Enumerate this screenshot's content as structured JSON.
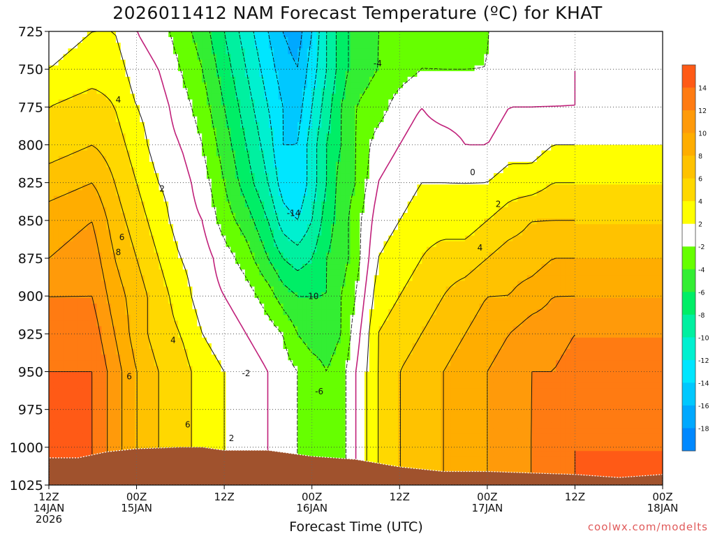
{
  "chart_data": {
    "type": "contour",
    "title": "2026011412 NAM Forecast Temperature (ºC) for KHAT",
    "xlabel": "Forecast Time (UTC)",
    "ylabel": "",
    "y_scale": "pressure, decreasing upward",
    "ylim": [
      1025,
      725
    ],
    "y_ticks": [
      "725",
      "750",
      "775",
      "800",
      "825",
      "850",
      "875",
      "900",
      "925",
      "950",
      "975",
      "1000",
      "1025"
    ],
    "x_ticks": [
      {
        "lines": [
          "12Z",
          "14JAN",
          "2026"
        ]
      },
      {
        "lines": [
          "00Z",
          "15JAN"
        ]
      },
      {
        "lines": [
          "12Z"
        ]
      },
      {
        "lines": [
          "00Z",
          "16JAN"
        ]
      },
      {
        "lines": [
          "12Z"
        ]
      },
      {
        "lines": [
          "00Z",
          "17JAN"
        ]
      },
      {
        "lines": [
          "12Z"
        ]
      },
      {
        "lines": [
          "00Z",
          "18JAN"
        ]
      }
    ],
    "grid": true,
    "colorbar": {
      "placement": "right",
      "bins": [
        {
          "label": "",
          "color": "#ff5a16"
        },
        {
          "label": "14",
          "color": "#ff7b12"
        },
        {
          "label": "12",
          "color": "#ff9a0a"
        },
        {
          "label": "10",
          "color": "#ffad00"
        },
        {
          "label": "8",
          "color": "#ffc200"
        },
        {
          "label": "6",
          "color": "#ffd800"
        },
        {
          "label": "4",
          "color": "#ffff00"
        },
        {
          "label": "2",
          "color": "#ffffff"
        },
        {
          "label": "-2",
          "color": "#66ff00"
        },
        {
          "label": "-4",
          "color": "#33ee33"
        },
        {
          "label": "-6",
          "color": "#00ee66"
        },
        {
          "label": "-8",
          "color": "#00f0a0"
        },
        {
          "label": "-10",
          "color": "#00f0d0"
        },
        {
          "label": "-12",
          "color": "#00e6ff"
        },
        {
          "label": "-14",
          "color": "#00c8ff"
        },
        {
          "label": "-16",
          "color": "#00a8ff"
        },
        {
          "label": "-18",
          "color": "#0088ff"
        }
      ]
    },
    "contour_labels": [
      {
        "text": "4",
        "t": 9.5,
        "p": 772
      },
      {
        "text": "2",
        "t": 15.5,
        "p": 831
      },
      {
        "text": "6",
        "t": 10,
        "p": 863
      },
      {
        "text": "8",
        "t": 9.5,
        "p": 873
      },
      {
        "text": "4",
        "t": 17,
        "p": 931
      },
      {
        "text": "6",
        "t": 11,
        "p": 955
      },
      {
        "text": "6",
        "t": 19,
        "p": 987
      },
      {
        "text": "2",
        "t": 25,
        "p": 996
      },
      {
        "text": "-2",
        "t": 27,
        "p": 953
      },
      {
        "text": "-14",
        "t": 33.5,
        "p": 847
      },
      {
        "text": "-10",
        "t": 36,
        "p": 902
      },
      {
        "text": "-6",
        "t": 37,
        "p": 965
      },
      {
        "text": "-4",
        "t": 45,
        "p": 748
      },
      {
        "text": "0",
        "t": 58,
        "p": 820
      },
      {
        "text": "2",
        "t": 61.5,
        "p": 841
      },
      {
        "text": "4",
        "t": 59,
        "p": 870
      }
    ],
    "temperature_field": {
      "comment": "nodes: forecast hour from 12Z 14JAN",
      "hours": [
        0,
        6,
        9,
        12,
        15,
        18,
        21,
        24,
        27,
        30,
        32,
        34,
        36,
        38,
        40,
        42,
        45,
        48,
        51,
        54,
        57,
        60,
        63,
        66,
        69,
        72
      ],
      "columns": [
        [
          1,
          2,
          4,
          5,
          7,
          9,
          10,
          12,
          13,
          14,
          15
        ],
        [
          2,
          3,
          5,
          6,
          8,
          10,
          11,
          12,
          13,
          14,
          14
        ],
        [
          2,
          3,
          4,
          5,
          6,
          7,
          8,
          9,
          10,
          11,
          11
        ],
        [
          0,
          1,
          2,
          3,
          4,
          5,
          6,
          7,
          7,
          8,
          8
        ],
        [
          -1,
          0,
          1,
          1,
          2,
          3,
          4,
          5,
          5,
          6,
          6
        ],
        [
          -3,
          -2,
          -1,
          0,
          1,
          1,
          2,
          3,
          4,
          5,
          5
        ],
        [
          -5,
          -4,
          -3,
          -2,
          -1,
          0,
          1,
          1,
          2,
          3,
          3
        ],
        [
          -8,
          -7,
          -6,
          -5,
          -4,
          -3,
          -1,
          0,
          1,
          2,
          2
        ],
        [
          -11,
          -10,
          -9,
          -8,
          -7,
          -5,
          -3,
          -1,
          0,
          1,
          1
        ],
        [
          -14,
          -13,
          -12,
          -11,
          -10,
          -8,
          -6,
          -3,
          -1,
          0,
          0
        ],
        [
          -16,
          -15,
          -14,
          -14,
          -13,
          -11,
          -8,
          -5,
          -2,
          -1,
          -1
        ],
        [
          -17,
          -16,
          -15,
          -14,
          -14,
          -12,
          -9,
          -6,
          -4,
          -2,
          -2
        ],
        [
          -14,
          -13,
          -12,
          -11,
          -11,
          -10,
          -8,
          -6,
          -5,
          -3,
          -3
        ],
        [
          -10,
          -10,
          -9,
          -8,
          -8,
          -7,
          -6,
          -6,
          -5,
          -4,
          -4
        ],
        [
          -7,
          -7,
          -6,
          -6,
          -5,
          -5,
          -5,
          -4,
          -4,
          -3,
          -3
        ],
        [
          -5,
          -5,
          -4,
          -4,
          -4,
          -3,
          -3,
          -2,
          -1,
          0,
          0
        ],
        [
          -4,
          -4,
          -3,
          -1,
          0,
          1,
          2,
          3,
          4,
          4,
          4
        ],
        [
          -4,
          -3,
          -1,
          0,
          1,
          2,
          3,
          4,
          5,
          6,
          6
        ],
        [
          -3,
          -2,
          0,
          1,
          2,
          3,
          4,
          5,
          6,
          7,
          7
        ],
        [
          -3,
          -2,
          -1,
          1,
          2,
          3,
          5,
          6,
          7,
          8,
          8
        ],
        [
          -3,
          -2,
          -1,
          0,
          2,
          3,
          5,
          7,
          8,
          9,
          9
        ],
        [
          -2,
          -2,
          -1,
          0,
          2,
          4,
          6,
          8,
          9,
          10,
          10
        ],
        [
          -2,
          -1,
          0,
          1,
          3,
          5,
          7,
          8,
          10,
          11,
          11
        ],
        [
          -2,
          -1,
          0,
          1,
          3,
          6,
          7,
          9,
          11,
          12,
          12
        ],
        [
          -1,
          -1,
          0,
          2,
          4,
          6,
          8,
          10,
          11,
          12,
          13
        ],
        [
          -1,
          0,
          0,
          2,
          4,
          6,
          8,
          10,
          12,
          13,
          14
        ]
      ]
    },
    "terrain_color": "#a0522d"
  },
  "title": "2026011412 NAM Forecast Temperature (ºC) for KHAT",
  "xlabel": "Forecast Time (UTC)",
  "credit": "coolwx.com/modelts"
}
